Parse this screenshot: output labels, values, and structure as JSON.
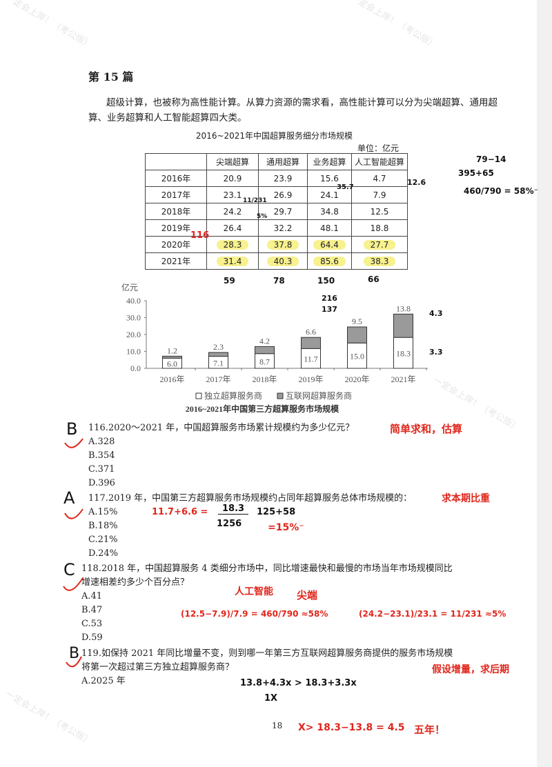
{
  "watermark": "一定会上岸！（考公版）",
  "heading": "第 15 篇",
  "intro": "超级计算，也被称为高性能计算。从算力资源的需求看，高性能计算可以分为尖端超算、通用超算、业务超算和人工智能超算四大类。",
  "table": {
    "title": "2016~2021年中国超算服务细分市场规模",
    "unit": "单位：亿元",
    "headers": [
      "",
      "尖端超算",
      "通用超算",
      "业务超算",
      "人工智能超算"
    ],
    "rows": [
      [
        "2016年",
        "20.9",
        "23.9",
        "15.6",
        "4.7"
      ],
      [
        "2017年",
        "23.1",
        "26.9",
        "24.1",
        "7.9"
      ],
      [
        "2018年",
        "24.2",
        "29.7",
        "34.8",
        "12.5"
      ],
      [
        "2019年",
        "26.4",
        "32.2",
        "48.1",
        "18.8"
      ],
      [
        "2020年",
        "28.3",
        "37.8",
        "64.4",
        "27.7"
      ],
      [
        "2021年",
        "31.4",
        "40.3",
        "85.6",
        "38.3"
      ]
    ]
  },
  "chart_data": {
    "type": "bar",
    "stacked": true,
    "title": "2016~2021年中国第三方超算服务市场规模",
    "ylabel": "亿元",
    "ylim": [
      0,
      40
    ],
    "yticks": [
      "0.0",
      "10.0",
      "20.0",
      "30.0",
      "40.0"
    ],
    "categories": [
      "2016年",
      "2017年",
      "2018年",
      "2019年",
      "2020年",
      "2021年"
    ],
    "series": [
      {
        "name": "独立超算服务商",
        "values": [
          6.0,
          7.1,
          8.7,
          11.7,
          15.0,
          18.3
        ],
        "labels": [
          "6.0",
          "7.1",
          "8.7",
          "11.7",
          "15.0",
          "18.3"
        ],
        "color": "#ffffff"
      },
      {
        "name": "互联网超算服务商",
        "values": [
          1.2,
          2.3,
          4.2,
          6.6,
          9.5,
          13.8
        ],
        "labels": [
          "1.2",
          "2.3",
          "4.2",
          "6.6",
          "9.5",
          "13.8"
        ],
        "color": "#9a9a9a"
      }
    ],
    "legend": "bottom"
  },
  "questions": [
    {
      "stem": "116.2020～2021 年，中国超算服务市场累计规模约为多少亿元？",
      "options": [
        "A.328",
        "B.354",
        "C.371",
        "D.396"
      ]
    },
    {
      "stem": "117.2019 年，中国第三方超算服务市场规模约占同年超算服务总体市场规模的：",
      "options": [
        "A.15%",
        "B.18%",
        "C.21%",
        "D.24%"
      ]
    },
    {
      "stem": "118.2018 年，中国超算服务 4 类细分市场中，同比增速最快和最慢的市场当年市场规模同比增速相差约多少个百分点？",
      "options": [
        "A.41",
        "B.47",
        "C.53",
        "D.59"
      ]
    },
    {
      "stem": "119.如保持 2021 年同比增量不变，则到哪一年第三方互联网超算服务商提供的服务市场规模将第一次超过第三方独立超算服务商？",
      "options": [
        "A.2025 年"
      ]
    }
  ],
  "page_number": "18",
  "annotations": {
    "answers": [
      "B",
      "A",
      "C",
      "B"
    ],
    "q116_note": "简单求和，估算",
    "q117_note": "求本期比重",
    "q117_calc1": "11.7+6.6 =",
    "q117_num": "18.3",
    "q117_den": "1256",
    "q117_calc2": "125+58",
    "q117_result": "=15%⁻",
    "q118_fast": "人工智能",
    "q118_slow": "尖端",
    "q118_calc1": "(12.5−7.9)/7.9 = 460/790 ≈58%",
    "q118_calc2": "(24.2−23.1)/23.1 = 11/231 ≈5%",
    "q119_note": "假设增量，求后期",
    "q119_ineq": "13.8+4.3x > 18.3+3.3x",
    "q119_x": "1X",
    "q119_result": "X> 18.3−13.8 = 4.5",
    "q119_answer": "五年！",
    "top_right": [
      "79−14",
      "395+65",
      "460/790 = 58%⁻"
    ],
    "table_marks": [
      "12.6",
      "35.7",
      "11/231",
      "5%",
      "116"
    ],
    "col_sums": [
      "59",
      "78",
      "150",
      "66"
    ],
    "chart_marks": [
      "216",
      "137",
      "4.3",
      "3.3"
    ]
  }
}
